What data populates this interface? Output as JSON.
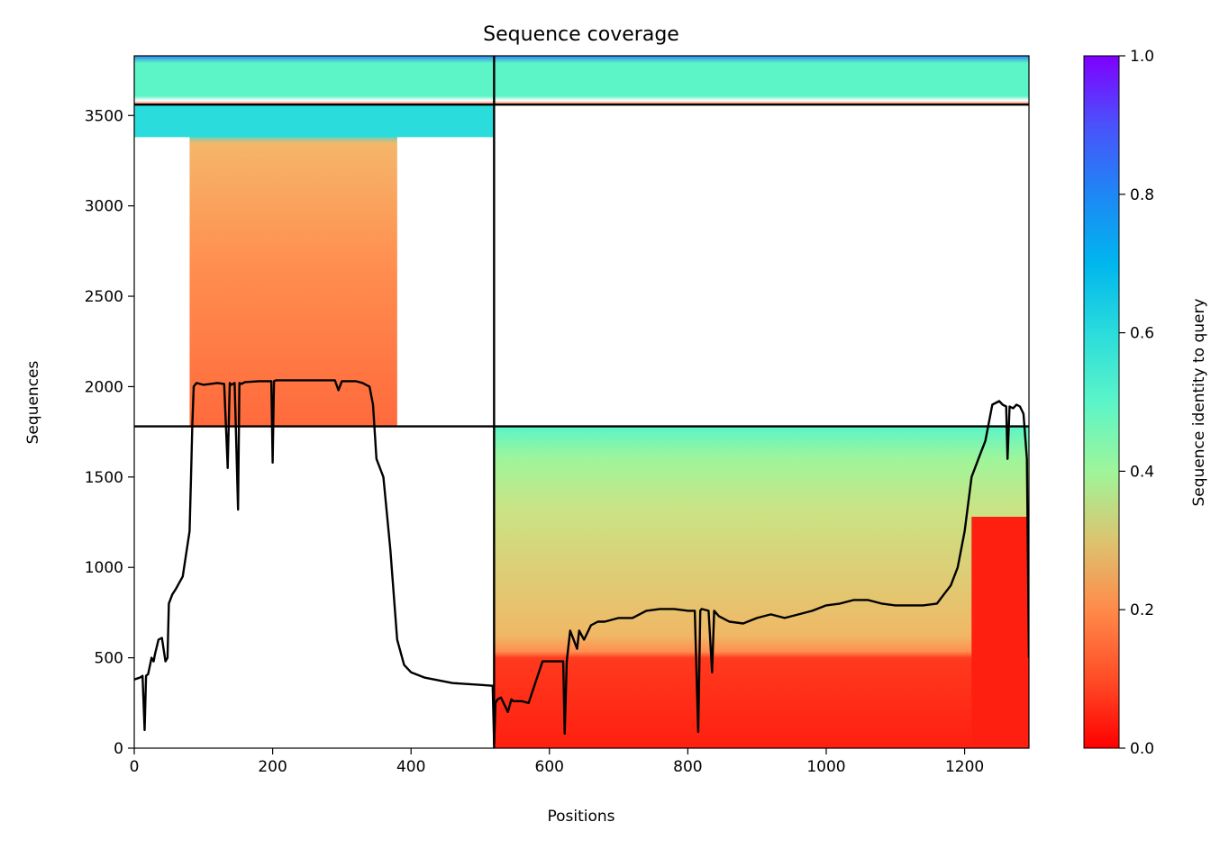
{
  "chart_data": {
    "type": "heatmap",
    "title": "Sequence coverage",
    "xlabel": "Positions",
    "ylabel": "Sequences",
    "xlim": [
      0,
      1293
    ],
    "ylim": [
      0,
      3830
    ],
    "xticks": [
      0,
      200,
      400,
      600,
      800,
      1000,
      1200
    ],
    "yticks": [
      0,
      500,
      1000,
      1500,
      2000,
      2500,
      3000,
      3500
    ],
    "grid": false,
    "colorbar": {
      "label": "Sequence identity to query",
      "range": [
        0.0,
        1.0
      ],
      "ticks": [
        "0.0",
        "0.2",
        "0.4",
        "0.6",
        "0.8",
        "1.0"
      ],
      "colormap": "rainbow_r"
    },
    "block_separators": {
      "x": [
        520
      ],
      "y": [
        1780,
        3560
      ]
    },
    "coverage_blocks": [
      {
        "x": [
          0,
          520
        ],
        "y": [
          3560,
          3830
        ],
        "identity_range": [
          0.1,
          0.9
        ]
      },
      {
        "x": [
          520,
          1293
        ],
        "y": [
          3560,
          3830
        ],
        "identity_range": [
          0.1,
          0.9
        ]
      },
      {
        "x": [
          0,
          520
        ],
        "y": [
          1780,
          3560
        ],
        "identity_range": [
          0.15,
          0.65
        ]
      },
      {
        "x": [
          520,
          1293
        ],
        "y": [
          0,
          1780
        ],
        "identity_range": [
          0.0,
          0.45
        ]
      }
    ],
    "coverage_line": {
      "name": "coverage",
      "x": [
        0,
        8,
        12,
        15,
        17,
        20,
        25,
        28,
        30,
        35,
        40,
        45,
        48,
        50,
        55,
        60,
        70,
        80,
        82,
        84,
        86,
        90,
        100,
        120,
        130,
        135,
        138,
        140,
        145,
        150,
        152,
        155,
        160,
        180,
        198,
        200,
        202,
        205,
        220,
        240,
        260,
        280,
        290,
        295,
        300,
        320,
        330,
        340,
        345,
        350,
        360,
        370,
        380,
        390,
        400,
        420,
        440,
        460,
        480,
        500,
        518,
        520,
        522,
        525,
        530,
        540,
        545,
        548,
        550,
        560,
        570,
        590,
        600,
        610,
        620,
        622,
        625,
        630,
        640,
        643,
        650,
        660,
        670,
        680,
        700,
        720,
        740,
        760,
        780,
        800,
        810,
        815,
        818,
        820,
        830,
        835,
        838,
        845,
        860,
        880,
        900,
        920,
        940,
        960,
        980,
        1000,
        1020,
        1040,
        1060,
        1080,
        1100,
        1120,
        1140,
        1160,
        1170,
        1180,
        1190,
        1200,
        1210,
        1220,
        1230,
        1240,
        1250,
        1255,
        1260,
        1262,
        1265,
        1270,
        1275,
        1280,
        1285,
        1290,
        1293
      ],
      "y": [
        380,
        390,
        400,
        100,
        400,
        410,
        500,
        480,
        520,
        600,
        610,
        480,
        500,
        800,
        850,
        880,
        950,
        1200,
        1500,
        1800,
        2000,
        2020,
        2010,
        2020,
        2015,
        1550,
        2020,
        2010,
        2020,
        1320,
        2020,
        2015,
        2025,
        2030,
        2030,
        1580,
        2030,
        2035,
        2035,
        2035,
        2035,
        2035,
        2035,
        1980,
        2030,
        2030,
        2020,
        2000,
        1900,
        1600,
        1500,
        1100,
        600,
        460,
        420,
        390,
        375,
        360,
        355,
        350,
        345,
        20,
        250,
        270,
        280,
        200,
        270,
        260,
        260,
        260,
        250,
        480,
        480,
        480,
        480,
        80,
        480,
        650,
        550,
        650,
        600,
        680,
        700,
        700,
        720,
        720,
        760,
        770,
        770,
        760,
        760,
        90,
        760,
        770,
        760,
        420,
        760,
        730,
        700,
        690,
        720,
        740,
        720,
        740,
        760,
        790,
        800,
        820,
        820,
        800,
        790,
        790,
        790,
        800,
        850,
        900,
        1000,
        1200,
        1500,
        1600,
        1700,
        1900,
        1920,
        1900,
        1890,
        1600,
        1890,
        1880,
        1900,
        1890,
        1850,
        1600,
        500
      ]
    }
  }
}
